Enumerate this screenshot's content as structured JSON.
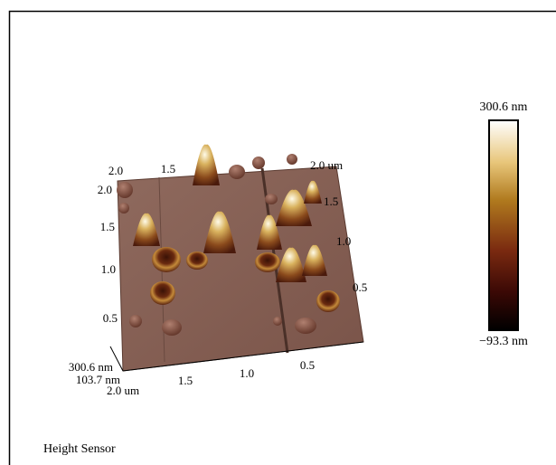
{
  "colorbar": {
    "max_label": "300.6 nm",
    "min_label": "−93.3 nm"
  },
  "caption": "Height Sensor",
  "axes": {
    "top": [
      "2.0",
      "1.5"
    ],
    "top_right": "2.0 um",
    "right": [
      "1.5",
      "1.0",
      "0.5"
    ],
    "left": [
      "2.0",
      "1.5",
      "1.0",
      "0.5"
    ],
    "bottom": [
      "2.0 um",
      "1.5",
      "1.0",
      "0.5"
    ],
    "z": [
      "300.6 nm",
      "103.7 nm"
    ]
  }
}
